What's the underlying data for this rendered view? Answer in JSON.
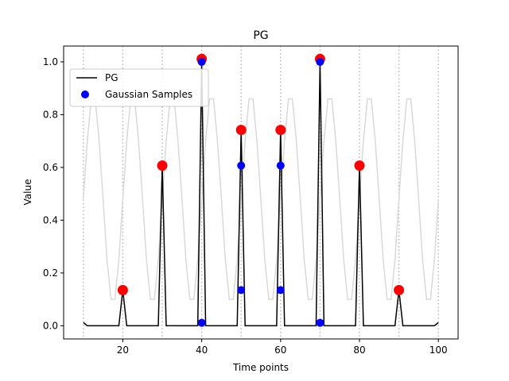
{
  "chart_data": {
    "type": "line",
    "title": "PG",
    "xlabel": "Time points",
    "ylabel": "Value",
    "xlim": [
      5,
      105
    ],
    "ylim": [
      -0.05,
      1.06
    ],
    "xticks": [
      20,
      40,
      60,
      80,
      100
    ],
    "yticks": [
      0.0,
      0.2,
      0.4,
      0.6,
      0.8,
      1.0
    ],
    "ytick_labels": [
      "0.0",
      "0.2",
      "0.4",
      "0.6",
      "0.8",
      "1.0"
    ],
    "vlines": [
      10,
      20,
      30,
      40,
      50,
      60,
      70,
      80,
      90,
      100
    ],
    "legend_placement": "upper-left",
    "colors": {
      "pg_line": "#000000",
      "background_wave": "#d9d9d9",
      "gaussian_samples": "#0000ff",
      "peaks": "#ff0000",
      "vlines": "#b0b0b0"
    },
    "series": [
      {
        "name": "PG",
        "style": "line",
        "x": [
          10,
          11,
          12,
          13,
          14,
          15,
          16,
          17,
          18,
          19,
          20,
          21,
          22,
          23,
          24,
          25,
          26,
          27,
          28,
          29,
          30,
          31,
          32,
          33,
          34,
          35,
          36,
          37,
          38,
          39,
          40,
          41,
          42,
          43,
          44,
          45,
          46,
          47,
          48,
          49,
          50,
          51,
          52,
          53,
          54,
          55,
          56,
          57,
          58,
          59,
          60,
          61,
          62,
          63,
          64,
          65,
          66,
          67,
          68,
          69,
          70,
          71,
          72,
          73,
          74,
          75,
          76,
          77,
          78,
          79,
          80,
          81,
          82,
          83,
          84,
          85,
          86,
          87,
          88,
          89,
          90,
          91,
          92,
          93,
          94,
          95,
          96,
          97,
          98,
          99,
          100
        ],
        "y": [
          0.012,
          0,
          0,
          0,
          0,
          0,
          0,
          0,
          0,
          0,
          0.135,
          0,
          0,
          0,
          0,
          0,
          0,
          0,
          0,
          0,
          0.607,
          0,
          0,
          0,
          0,
          0,
          0,
          0,
          0,
          0,
          1.0,
          0,
          0,
          0,
          0,
          0,
          0,
          0,
          0,
          0,
          0.74,
          0,
          0,
          0,
          0,
          0,
          0,
          0,
          0,
          0,
          0.74,
          0,
          0,
          0,
          0,
          0,
          0,
          0,
          0,
          0,
          1.0,
          0,
          0,
          0,
          0,
          0,
          0,
          0,
          0,
          0,
          0.607,
          0,
          0,
          0,
          0,
          0,
          0,
          0,
          0,
          0,
          0.135,
          0,
          0,
          0,
          0,
          0,
          0,
          0,
          0,
          0,
          0.012
        ]
      },
      {
        "name": "Gaussian Samples",
        "style": "scatter",
        "x": [
          40,
          40,
          50,
          50,
          60,
          60,
          70,
          70
        ],
        "y": [
          0.011,
          1.0,
          0.135,
          0.607,
          0.135,
          0.607,
          0.011,
          1.0
        ]
      },
      {
        "style": "scatter",
        "x": [
          20,
          30,
          40,
          50,
          60,
          70,
          80,
          90
        ],
        "y": [
          0.135,
          0.607,
          1.011,
          0.742,
          0.742,
          1.011,
          0.607,
          0.135
        ]
      },
      {
        "style": "line",
        "x": [
          10,
          11,
          12,
          13,
          14,
          15,
          16,
          17,
          18,
          19,
          20,
          21,
          22,
          23,
          24,
          25,
          26,
          27,
          28,
          29,
          30,
          31,
          32,
          33,
          34,
          35,
          36,
          37,
          38,
          39,
          40,
          41,
          42,
          43,
          44,
          45,
          46,
          47,
          48,
          49,
          50,
          51,
          52,
          53,
          54,
          55,
          56,
          57,
          58,
          59,
          60,
          61,
          62,
          63,
          64,
          65,
          66,
          67,
          68,
          69,
          70,
          71,
          72,
          73,
          74,
          75,
          76,
          77,
          78,
          79,
          80,
          81,
          82,
          83,
          84,
          85,
          86,
          87,
          88,
          89,
          90,
          91,
          92,
          93,
          94,
          95,
          96,
          97,
          98,
          99,
          100
        ],
        "y": [
          0.48,
          0.7,
          0.86,
          0.86,
          0.7,
          0.48,
          0.25,
          0.1,
          0.1,
          0.25,
          0.48,
          0.7,
          0.86,
          0.86,
          0.7,
          0.48,
          0.25,
          0.1,
          0.1,
          0.25,
          0.48,
          0.7,
          0.86,
          0.86,
          0.7,
          0.48,
          0.25,
          0.1,
          0.1,
          0.25,
          0.48,
          0.7,
          0.86,
          0.86,
          0.7,
          0.48,
          0.25,
          0.1,
          0.1,
          0.25,
          0.48,
          0.7,
          0.86,
          0.86,
          0.7,
          0.48,
          0.25,
          0.1,
          0.1,
          0.25,
          0.48,
          0.7,
          0.86,
          0.86,
          0.7,
          0.48,
          0.25,
          0.1,
          0.1,
          0.25,
          0.48,
          0.7,
          0.86,
          0.86,
          0.7,
          0.48,
          0.25,
          0.1,
          0.1,
          0.25,
          0.48,
          0.7,
          0.86,
          0.86,
          0.7,
          0.48,
          0.25,
          0.1,
          0.1,
          0.25,
          0.48,
          0.7,
          0.86,
          0.86,
          0.7,
          0.48,
          0.25,
          0.1,
          0.1,
          0.25,
          0.48
        ]
      }
    ]
  }
}
